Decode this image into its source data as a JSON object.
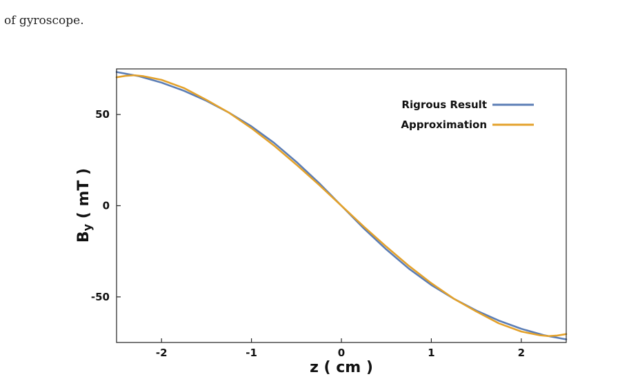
{
  "caption": "of gyroscope.",
  "chart_data": {
    "type": "line",
    "title": "",
    "xlabel": "z ( cm )",
    "ylabel": "By ( mT )",
    "ylabel_main": "B",
    "ylabel_sub": "y",
    "ylabel_rest": " ( mT )",
    "xlim": [
      -2.5,
      2.5
    ],
    "ylim": [
      -75,
      75
    ],
    "xticks": [
      -2,
      -1,
      0,
      1,
      2
    ],
    "xtick_labels": [
      "-2",
      "-1",
      "0",
      "1",
      "2"
    ],
    "yticks": [
      50,
      0,
      -50
    ],
    "ytick_labels": [
      "50",
      "0",
      "-50"
    ],
    "grid": false,
    "legend_position": "top-right",
    "series": [
      {
        "name": "Rigrous Result",
        "color": "#5b7db5",
        "x": [
          -2.5,
          -2.25,
          -2.0,
          -1.75,
          -1.5,
          -1.25,
          -1.0,
          -0.75,
          -0.5,
          -0.25,
          0.0,
          0.25,
          0.5,
          0.75,
          1.0,
          1.25,
          1.5,
          1.75,
          2.0,
          2.25,
          2.5
        ],
        "y": [
          73.3,
          71.0,
          67.5,
          63.0,
          57.5,
          51.0,
          43.5,
          34.5,
          24.0,
          12.5,
          0.0,
          -12.5,
          -24.0,
          -34.5,
          -43.5,
          -51.0,
          -57.5,
          -63.0,
          -67.5,
          -71.0,
          -73.3
        ]
      },
      {
        "name": "Approximation",
        "color": "#e3a12a",
        "x": [
          -2.5,
          -2.4,
          -2.3,
          -2.2,
          -2.0,
          -1.75,
          -1.5,
          -1.25,
          -1.0,
          -0.75,
          -0.5,
          -0.25,
          0.0,
          0.25,
          0.5,
          0.75,
          1.0,
          1.25,
          1.5,
          1.75,
          2.0,
          2.2,
          2.3,
          2.4,
          2.5
        ],
        "y": [
          70.4,
          71.2,
          71.5,
          71.0,
          69.0,
          64.5,
          58.0,
          51.0,
          42.5,
          33.0,
          22.5,
          11.5,
          0.0,
          -11.5,
          -22.5,
          -33.0,
          -42.5,
          -51.0,
          -58.0,
          -64.5,
          -69.0,
          -71.0,
          -71.5,
          -71.2,
          -70.4
        ]
      }
    ]
  }
}
